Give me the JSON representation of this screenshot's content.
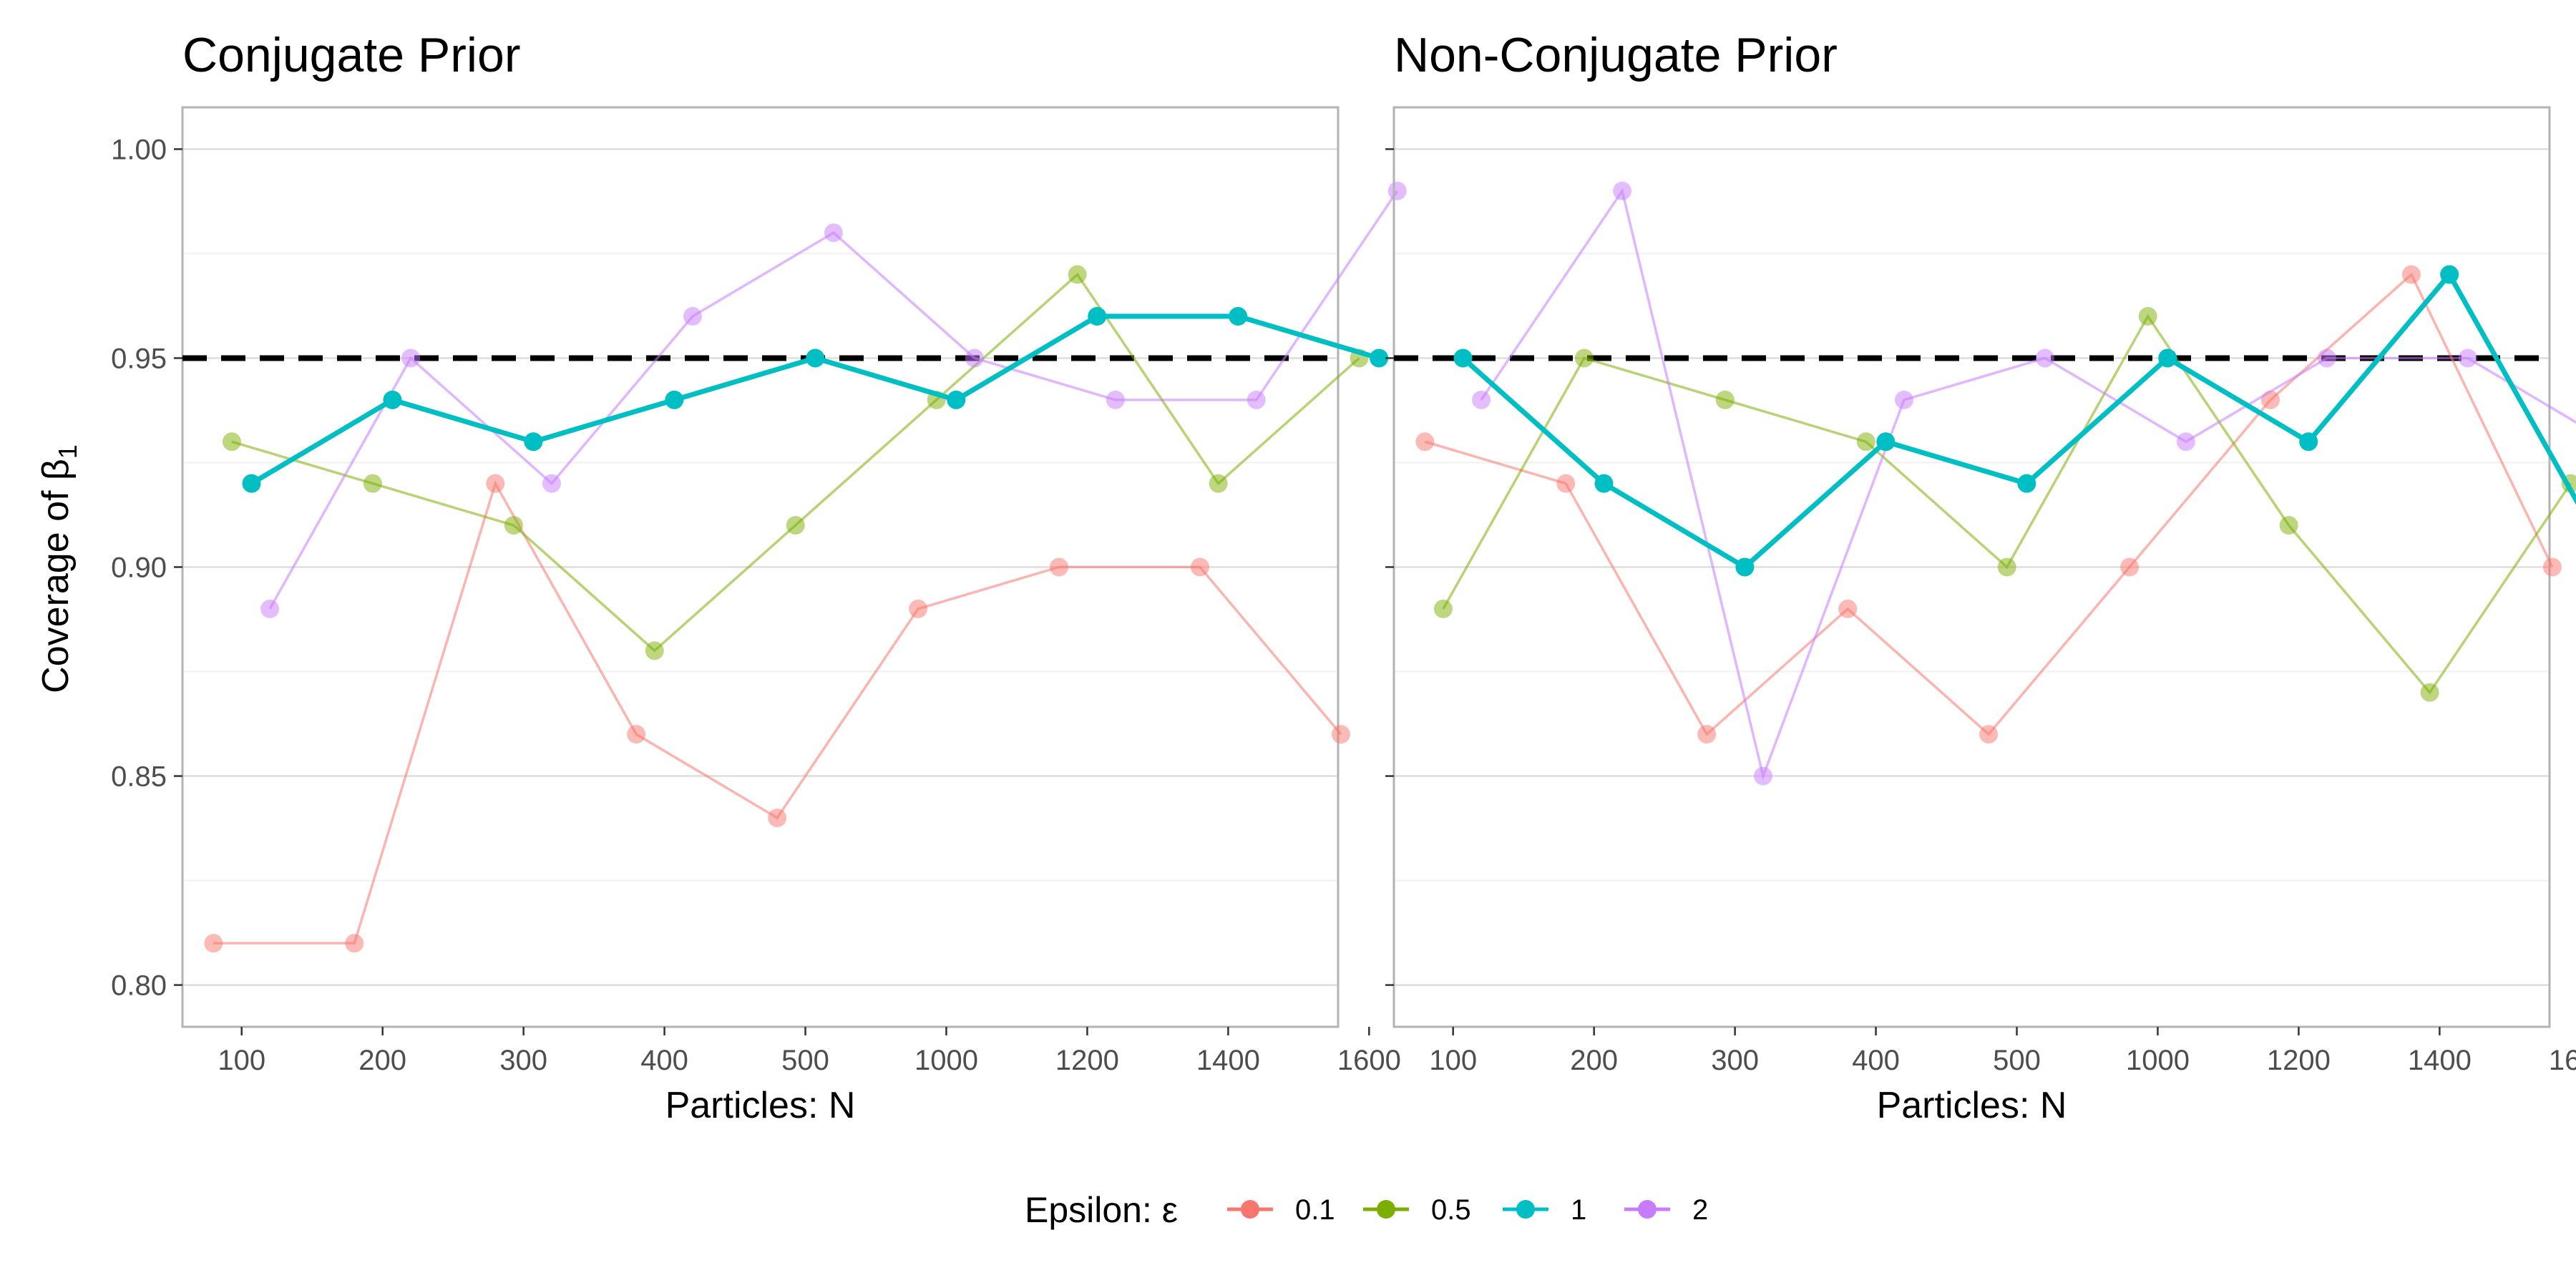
{
  "chart_data": {
    "type": "line",
    "ylabel": "Coverage of β",
    "ylabel_subscript": "1",
    "reference_line": {
      "y": 0.95,
      "style": "dashed"
    },
    "ylim": [
      0.79,
      1.01
    ],
    "y_ticks": [
      "0.80",
      "0.85",
      "0.90",
      "0.95",
      "1.00"
    ],
    "y_tick_values": [
      0.8,
      0.85,
      0.9,
      0.95,
      1.0
    ],
    "grid": true,
    "legend": {
      "title": "Epsilon: ε",
      "position": "bottom",
      "entries": [
        {
          "name": "0.1",
          "color": "#F8766D"
        },
        {
          "name": "0.5",
          "color": "#7CAE00"
        },
        {
          "name": "1",
          "color": "#00BFC4"
        },
        {
          "name": "2",
          "color": "#C77CFF"
        }
      ]
    },
    "categories": [
      "100",
      "200",
      "300",
      "400",
      "500",
      "1000",
      "1200",
      "1400",
      "1600"
    ],
    "panels": [
      {
        "title": "Conjugate Prior",
        "xlabel": "Particles: N",
        "series": [
          {
            "name": "0.1",
            "color": "#F8766D",
            "values": [
              0.81,
              0.81,
              0.92,
              0.86,
              0.84,
              0.89,
              0.9,
              0.9,
              0.86
            ]
          },
          {
            "name": "0.5",
            "color": "#7CAE00",
            "values": [
              0.93,
              0.92,
              0.91,
              0.88,
              0.91,
              0.94,
              0.97,
              0.92,
              0.95
            ]
          },
          {
            "name": "1",
            "color": "#00BFC4",
            "values": [
              0.92,
              0.94,
              0.93,
              0.94,
              0.95,
              0.94,
              0.96,
              0.96,
              0.95
            ]
          },
          {
            "name": "2",
            "color": "#C77CFF",
            "values": [
              0.89,
              0.95,
              0.92,
              0.96,
              0.98,
              0.95,
              0.94,
              0.94,
              0.99
            ]
          }
        ]
      },
      {
        "title": "Non-Conjugate Prior",
        "xlabel": "Particles: N",
        "series": [
          {
            "name": "0.1",
            "color": "#F8766D",
            "values": [
              0.93,
              0.92,
              0.86,
              0.89,
              0.86,
              0.9,
              0.94,
              0.97,
              0.9
            ]
          },
          {
            "name": "0.5",
            "color": "#7CAE00",
            "values": [
              0.89,
              0.95,
              0.94,
              0.93,
              0.9,
              0.96,
              0.91,
              0.87,
              0.92
            ]
          },
          {
            "name": "1",
            "color": "#00BFC4",
            "values": [
              0.95,
              0.92,
              0.9,
              0.93,
              0.92,
              0.95,
              0.93,
              0.97,
              0.91
            ]
          },
          {
            "name": "2",
            "color": "#C77CFF",
            "values": [
              0.94,
              0.99,
              0.85,
              0.94,
              0.95,
              0.93,
              0.95,
              0.95,
              0.93
            ]
          }
        ]
      }
    ]
  }
}
